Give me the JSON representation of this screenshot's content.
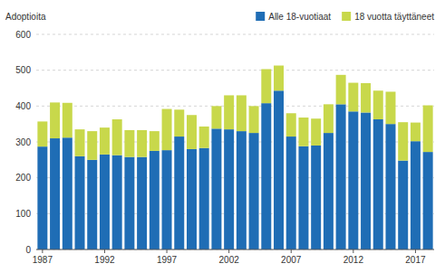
{
  "chart_data": {
    "type": "bar",
    "stacked": true,
    "ylabel": "Adoptioita",
    "categories": [
      "1987",
      null,
      null,
      null,
      null,
      "1992",
      null,
      null,
      null,
      null,
      "1997",
      null,
      null,
      null,
      null,
      "2002",
      null,
      null,
      null,
      null,
      "2007",
      null,
      null,
      null,
      null,
      "2012",
      null,
      null,
      null,
      null,
      "2017",
      null
    ],
    "series": [
      {
        "name": "Alle 18-vuotiaat",
        "color": "#1f6db5",
        "values": [
          287,
          310,
          312,
          260,
          250,
          265,
          263,
          258,
          258,
          275,
          277,
          315,
          280,
          283,
          337,
          335,
          330,
          325,
          408,
          443,
          315,
          288,
          290,
          325,
          405,
          385,
          382,
          363,
          350,
          248,
          302,
          272
        ]
      },
      {
        "name": "18 vuotta täyttäneet",
        "color": "#c8d84b",
        "values": [
          70,
          100,
          97,
          75,
          80,
          75,
          100,
          75,
          75,
          55,
          115,
          75,
          95,
          60,
          63,
          95,
          100,
          75,
          95,
          70,
          65,
          80,
          75,
          80,
          82,
          80,
          82,
          80,
          90,
          107,
          52,
          130
        ]
      }
    ],
    "ylim": [
      0,
      600
    ],
    "yticks": [
      0,
      100,
      200,
      300,
      400,
      500,
      600
    ],
    "grid": true,
    "legend": "upper right"
  }
}
